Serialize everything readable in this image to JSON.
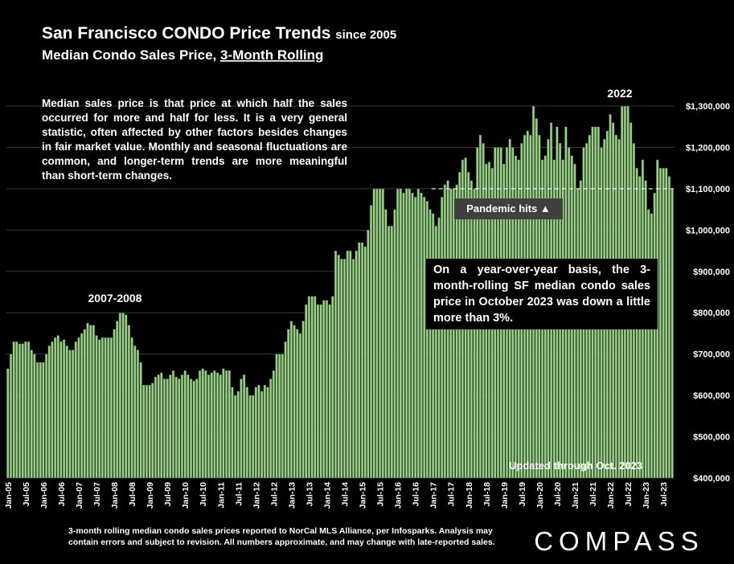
{
  "chart_data": {
    "type": "bar",
    "title": "San Francisco CONDO Price Trends",
    "title_suffix": "since 2005",
    "subtitle": "Median Condo Sales Price,",
    "subtitle_emphasis": "3-Month Rolling",
    "description": "Median sales price is that price at which half the sales occurred for more and half for less. It is a very general statistic, often affected by other factors besides changes in fair market value. Monthly and seasonal fluctuations are common, and longer-term trends are more meaningful than short-term changes.",
    "annotations": {
      "peak_2007": "2007-2008",
      "peak_2022": "2022",
      "pandemic": "Pandemic hits ▲",
      "yoy": "On a year-over-year basis, the 3-month-rolling SF median condo sales price in October 2023 was down a little more than 3%.",
      "updated": "Updated through Oct. 2023"
    },
    "footnote": "3-month rolling median condo sales prices reported to NorCal MLS Alliance, per Infosparks. Analysis may contain errors and subject to revision. All numbers approximate, and may change with late-reported sales.",
    "brand": "COMPASS",
    "reference_line": 1100000,
    "color": "#9ccf8a",
    "grid": true,
    "ylim": [
      400000,
      1330000
    ],
    "yticks": [
      {
        "value": 400000,
        "label": "$400,000"
      },
      {
        "value": 500000,
        "label": "$500,000"
      },
      {
        "value": 600000,
        "label": "$600,000"
      },
      {
        "value": 700000,
        "label": "$700,000"
      },
      {
        "value": 800000,
        "label": "$800,000"
      },
      {
        "value": 900000,
        "label": "$900,000"
      },
      {
        "value": 1000000,
        "label": "$1,000,000"
      },
      {
        "value": 1100000,
        "label": "$1,100,000"
      },
      {
        "value": 1200000,
        "label": "$1,200,000"
      },
      {
        "value": 1300000,
        "label": "$1,300,000"
      }
    ],
    "categories": [
      "Jan-05",
      null,
      null,
      null,
      null,
      null,
      "Jul-05",
      null,
      null,
      null,
      null,
      null,
      "Jan-06",
      null,
      null,
      null,
      null,
      null,
      "Jul-06",
      null,
      null,
      null,
      null,
      null,
      "Jan-07",
      null,
      null,
      null,
      null,
      null,
      "Jul-07",
      null,
      null,
      null,
      null,
      null,
      "Jan-08",
      null,
      null,
      null,
      null,
      null,
      "Jul-08",
      null,
      null,
      null,
      null,
      null,
      "Jan-09",
      null,
      null,
      null,
      null,
      null,
      "Jul-09",
      null,
      null,
      null,
      null,
      null,
      "Jan-10",
      null,
      null,
      null,
      null,
      null,
      "Jul-10",
      null,
      null,
      null,
      null,
      null,
      "Jan-11",
      null,
      null,
      null,
      null,
      null,
      "Jul-11",
      null,
      null,
      null,
      null,
      null,
      "Jan-12",
      null,
      null,
      null,
      null,
      null,
      "Jul-12",
      null,
      null,
      null,
      null,
      null,
      "Jan-13",
      null,
      null,
      null,
      null,
      null,
      "Jul-13",
      null,
      null,
      null,
      null,
      null,
      "Jan-14",
      null,
      null,
      null,
      null,
      null,
      "Jul-14",
      null,
      null,
      null,
      null,
      null,
      "Jan-15",
      null,
      null,
      null,
      null,
      null,
      "Jul-15",
      null,
      null,
      null,
      null,
      null,
      "Jan-16",
      null,
      null,
      null,
      null,
      null,
      "Jul-16",
      null,
      null,
      null,
      null,
      null,
      "Jan-17",
      null,
      null,
      null,
      null,
      null,
      "Jul-17",
      null,
      null,
      null,
      null,
      null,
      "Jan-18",
      null,
      null,
      null,
      null,
      null,
      "Jul-18",
      null,
      null,
      null,
      null,
      null,
      "Jan-19",
      null,
      null,
      null,
      null,
      null,
      "Jul-19",
      null,
      null,
      null,
      null,
      null,
      "Jan-20",
      null,
      null,
      null,
      null,
      null,
      "Jul-20",
      null,
      null,
      null,
      null,
      null,
      "Jan-21",
      null,
      null,
      null,
      null,
      null,
      "Jul-21",
      null,
      null,
      null,
      null,
      null,
      "Jan-22",
      null,
      null,
      null,
      null,
      null,
      "Jul-22",
      null,
      null,
      null,
      null,
      null,
      "Jan-23",
      null,
      null,
      null,
      null,
      null,
      "Jul-23",
      null,
      null,
      null
    ],
    "values": [
      665000,
      700000,
      730000,
      730000,
      725000,
      725000,
      730000,
      730000,
      710000,
      700000,
      680000,
      680000,
      680000,
      700000,
      720000,
      730000,
      740000,
      745000,
      730000,
      735000,
      720000,
      710000,
      710000,
      730000,
      740000,
      750000,
      760000,
      775000,
      770000,
      770000,
      745000,
      735000,
      740000,
      740000,
      740000,
      740000,
      760000,
      780000,
      800000,
      800000,
      795000,
      770000,
      740000,
      720000,
      710000,
      680000,
      625000,
      625000,
      625000,
      630000,
      645000,
      650000,
      655000,
      640000,
      640000,
      650000,
      660000,
      645000,
      640000,
      650000,
      660000,
      650000,
      640000,
      635000,
      640000,
      660000,
      665000,
      660000,
      650000,
      655000,
      660000,
      655000,
      650000,
      665000,
      660000,
      660000,
      620000,
      600000,
      610000,
      640000,
      650000,
      620000,
      600000,
      600000,
      620000,
      625000,
      610000,
      625000,
      620000,
      640000,
      660000,
      700000,
      700000,
      700000,
      730000,
      760000,
      780000,
      770000,
      760000,
      750000,
      780000,
      820000,
      840000,
      840000,
      840000,
      820000,
      820000,
      830000,
      830000,
      820000,
      840000,
      950000,
      940000,
      930000,
      930000,
      950000,
      950000,
      930000,
      950000,
      970000,
      970000,
      960000,
      1000000,
      1060000,
      1100000,
      1100000,
      1100000,
      1100000,
      1050000,
      1010000,
      1010000,
      1050000,
      1100000,
      1100000,
      1090000,
      1100000,
      1100000,
      1090000,
      1080000,
      1100000,
      1090000,
      1080000,
      1070000,
      1050000,
      1040000,
      1010000,
      1030000,
      1080000,
      1110000,
      1120000,
      1100000,
      1100000,
      1110000,
      1140000,
      1170000,
      1175000,
      1140000,
      1120000,
      1100000,
      1200000,
      1230000,
      1210000,
      1160000,
      1165000,
      1150000,
      1200000,
      1200000,
      1200000,
      1160000,
      1200000,
      1220000,
      1200000,
      1180000,
      1170000,
      1210000,
      1230000,
      1240000,
      1230000,
      1300000,
      1270000,
      1230000,
      1170000,
      1180000,
      1220000,
      1260000,
      1170000,
      1250000,
      1210000,
      1170000,
      1250000,
      1200000,
      1180000,
      1160000,
      1100000,
      1120000,
      1200000,
      1210000,
      1230000,
      1250000,
      1250000,
      1250000,
      1200000,
      1220000,
      1240000,
      1280000,
      1260000,
      1230000,
      1220000,
      1300000,
      1300000,
      1300000,
      1260000,
      1210000,
      1150000,
      1130000,
      1170000,
      1120000,
      1050000,
      1040000,
      1090000,
      1170000,
      1150000,
      1150000,
      1150000,
      1130000,
      1100000
    ]
  }
}
